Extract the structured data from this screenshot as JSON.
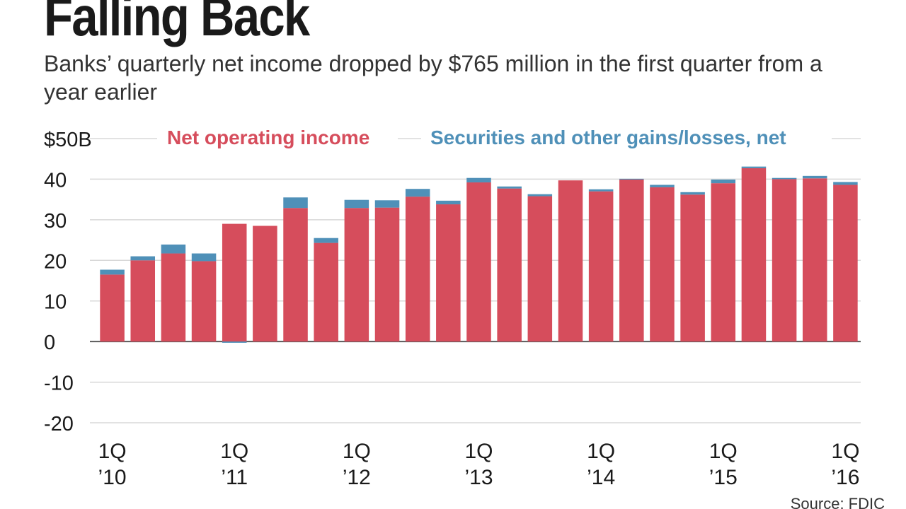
{
  "header": {
    "title": "Falling Back",
    "subtitle": "Banks’ quarterly net income dropped by $765 million in the first quarter from a year earlier"
  },
  "source": "Source: FDIC",
  "chart_data": {
    "type": "bar",
    "stacked": true,
    "unit_label": "$50B",
    "ylim": [
      -20,
      50
    ],
    "yticks": [
      -20,
      -10,
      0,
      10,
      20,
      30,
      40,
      50
    ],
    "ytick_labels": [
      "-20",
      "-10",
      "0",
      "10",
      "20",
      "30",
      "40",
      "$50B"
    ],
    "categories": [
      "1Q 2010",
      "2Q 2010",
      "3Q 2010",
      "4Q 2010",
      "1Q 2011",
      "2Q 2011",
      "3Q 2011",
      "4Q 2011",
      "1Q 2012",
      "2Q 2012",
      "3Q 2012",
      "4Q 2012",
      "1Q 2013",
      "2Q 2013",
      "3Q 2013",
      "4Q 2013",
      "1Q 2014",
      "2Q 2014",
      "3Q 2014",
      "4Q 2014",
      "1Q 2015",
      "2Q 2015",
      "3Q 2015",
      "4Q 2015",
      "1Q 2016"
    ],
    "x_tick_labels": [
      {
        "index": 0,
        "line1": "1Q",
        "line2": "’10"
      },
      {
        "index": 4,
        "line1": "1Q",
        "line2": "’11"
      },
      {
        "index": 8,
        "line1": "1Q",
        "line2": "’12"
      },
      {
        "index": 12,
        "line1": "1Q",
        "line2": "’13"
      },
      {
        "index": 16,
        "line1": "1Q",
        "line2": "’14"
      },
      {
        "index": 20,
        "line1": "1Q",
        "line2": "’15"
      },
      {
        "index": 24,
        "line1": "1Q",
        "line2": "’16"
      }
    ],
    "series": [
      {
        "name": "Net operating income",
        "color": "#d64d5c",
        "values": [
          16.5,
          20.0,
          21.7,
          19.8,
          29.0,
          28.5,
          32.9,
          24.3,
          32.9,
          33.0,
          35.7,
          33.8,
          39.2,
          37.7,
          35.8,
          39.7,
          37.0,
          39.9,
          38.0,
          36.2,
          39.0,
          42.7,
          40.0,
          40.2,
          38.6
        ]
      },
      {
        "name": "Securities and other gains/losses, net",
        "color": "#4f90b8",
        "values": [
          1.2,
          1.0,
          2.2,
          1.9,
          -0.3,
          0.0,
          2.6,
          1.2,
          2.0,
          1.8,
          1.9,
          0.9,
          1.1,
          0.5,
          0.5,
          0.0,
          0.5,
          0.2,
          0.6,
          0.6,
          0.9,
          0.4,
          0.3,
          0.6,
          0.7
        ]
      }
    ]
  }
}
